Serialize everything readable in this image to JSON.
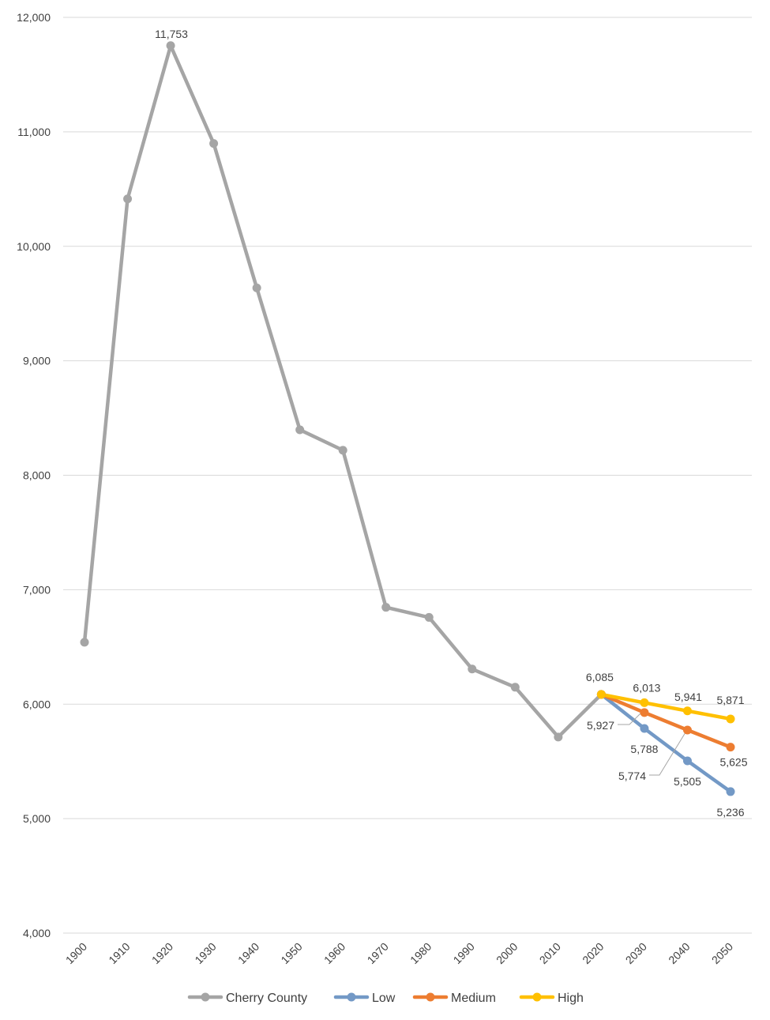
{
  "chart_data": {
    "type": "line",
    "title": "",
    "xlabel": "",
    "ylabel": "",
    "ylim": [
      4000,
      12000
    ],
    "y_ticks": [
      4000,
      5000,
      6000,
      7000,
      8000,
      9000,
      10000,
      11000,
      12000
    ],
    "y_tick_labels": [
      "4,000",
      "5,000",
      "6,000",
      "7,000",
      "8,000",
      "9,000",
      "10,000",
      "11,000",
      "12,000"
    ],
    "categories": [
      "1900",
      "1910",
      "1920",
      "1930",
      "1940",
      "1950",
      "1960",
      "1970",
      "1980",
      "1990",
      "2000",
      "2010",
      "2020",
      "2030",
      "2040",
      "2050"
    ],
    "grid": true,
    "legend_position": "bottom",
    "series": [
      {
        "name": "Cherry County",
        "color": "#a5a5a5",
        "values": [
          6541,
          10414,
          11753,
          10898,
          9637,
          8397,
          8218,
          6846,
          6758,
          6307,
          6148,
          5713,
          6085,
          null,
          null,
          null
        ],
        "labels": [
          null,
          null,
          "11,753",
          null,
          null,
          null,
          null,
          null,
          null,
          null,
          null,
          null,
          "6,085",
          null,
          null,
          null
        ]
      },
      {
        "name": "Low",
        "color": "#7399c6",
        "values": [
          null,
          null,
          null,
          null,
          null,
          null,
          null,
          null,
          null,
          null,
          null,
          null,
          6085,
          5788,
          5505,
          5236
        ],
        "labels": [
          null,
          null,
          null,
          null,
          null,
          null,
          null,
          null,
          null,
          null,
          null,
          null,
          null,
          "5,788",
          "5,505",
          "5,236"
        ]
      },
      {
        "name": "Medium",
        "color": "#ed7d31",
        "values": [
          null,
          null,
          null,
          null,
          null,
          null,
          null,
          null,
          null,
          null,
          null,
          null,
          6085,
          5927,
          5774,
          5625
        ],
        "labels": [
          null,
          null,
          null,
          null,
          null,
          null,
          null,
          null,
          null,
          null,
          null,
          null,
          null,
          "5,927",
          "5,774",
          "5,625"
        ]
      },
      {
        "name": "High",
        "color": "#ffc000",
        "values": [
          null,
          null,
          null,
          null,
          null,
          null,
          null,
          null,
          null,
          null,
          null,
          null,
          6085,
          6013,
          5941,
          5871
        ],
        "labels": [
          null,
          null,
          null,
          null,
          null,
          null,
          null,
          null,
          null,
          null,
          null,
          null,
          null,
          "6,013",
          "5,941",
          "5,871"
        ]
      }
    ]
  }
}
